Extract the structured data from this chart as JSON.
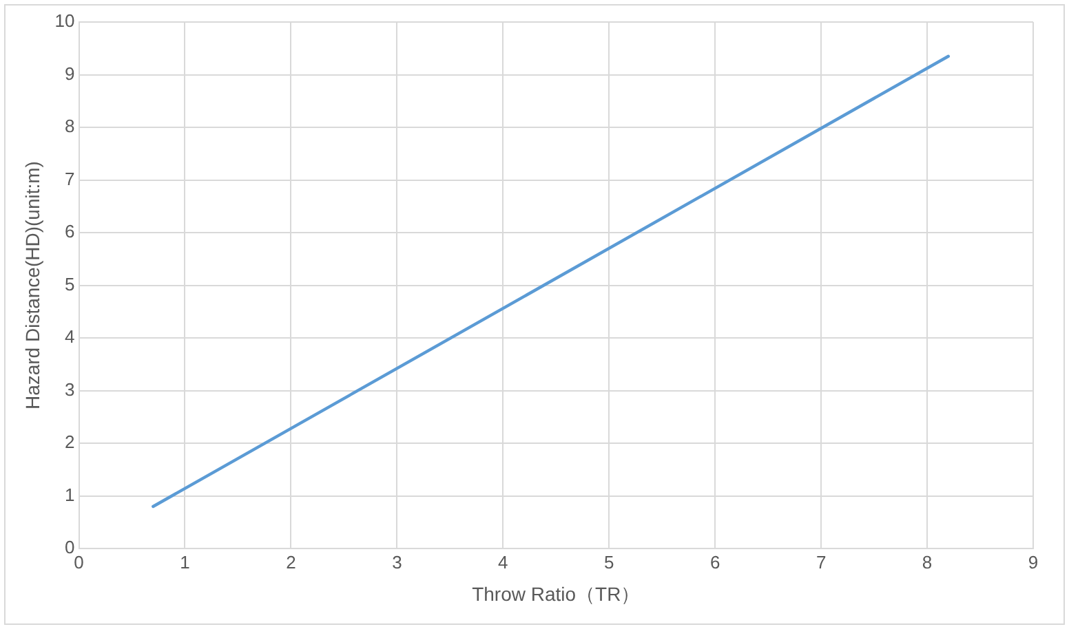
{
  "chart_data": {
    "type": "line",
    "xlabel": "Throw Ratio（TR）",
    "ylabel": "Hazard Distance(HD)(unit:m)",
    "series": [
      {
        "color": "#5b9bd5",
        "x": [
          0.7,
          8.2
        ],
        "values": [
          0.8,
          9.35
        ]
      }
    ],
    "xlim": [
      0,
      9
    ],
    "xticks": [
      0,
      1,
      2,
      3,
      4,
      5,
      6,
      7,
      8,
      9
    ],
    "ylim": [
      0,
      10
    ],
    "yticks": [
      0,
      1,
      2,
      3,
      4,
      5,
      6,
      7,
      8,
      9,
      10
    ],
    "grid": true,
    "marker": "none",
    "line_style": "solid"
  }
}
